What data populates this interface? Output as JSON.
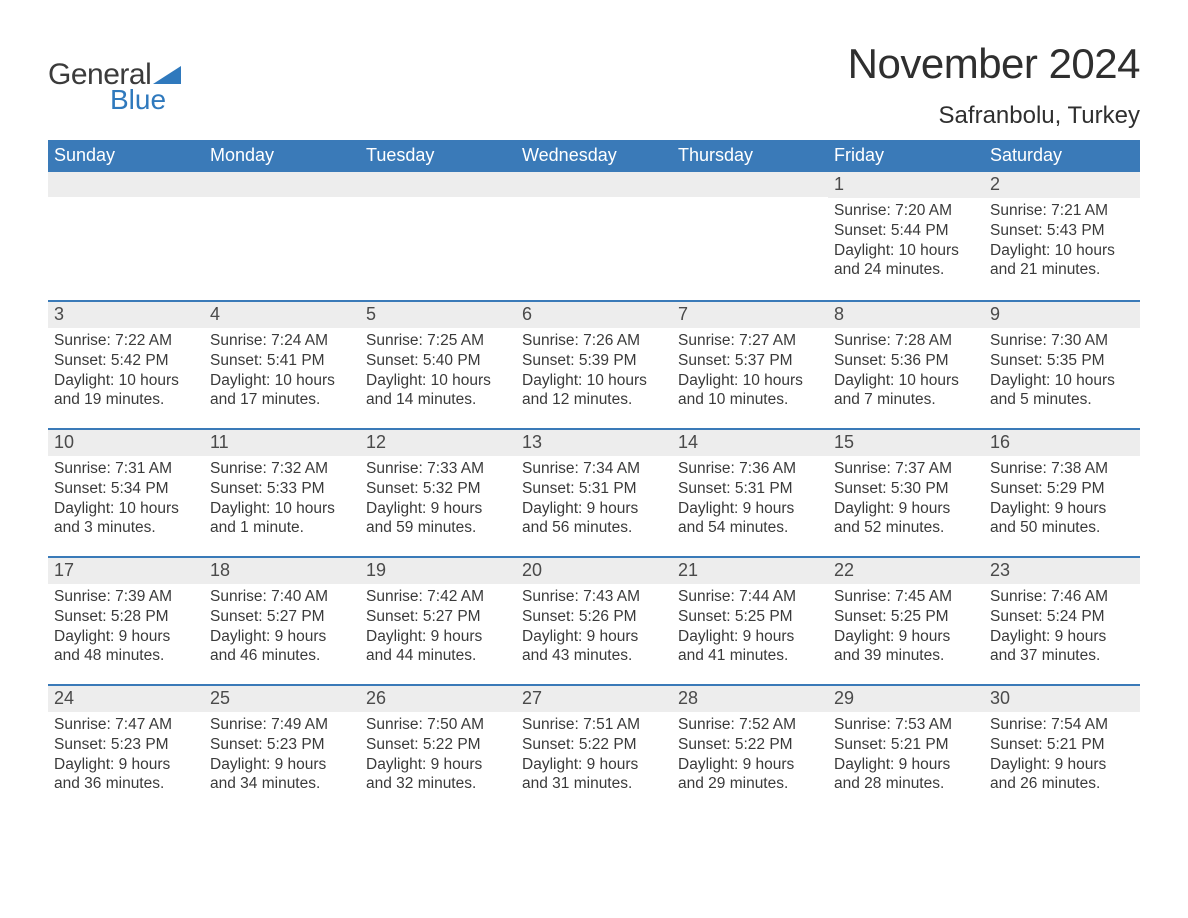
{
  "brand": {
    "text1": "General",
    "text2": "Blue",
    "triangle_color": "#2f79bd"
  },
  "title": "November 2024",
  "location": "Safranbolu, Turkey",
  "colors": {
    "header_bg": "#3a7ab8",
    "header_text": "#ffffff",
    "daynum_bg": "#ededed",
    "week_border": "#3a7ab8",
    "body_text": "#3a3a3a",
    "page_bg": "#ffffff"
  },
  "dow": [
    "Sunday",
    "Monday",
    "Tuesday",
    "Wednesday",
    "Thursday",
    "Friday",
    "Saturday"
  ],
  "weeks": [
    [
      {
        "n": "",
        "sunrise": "",
        "sunset": "",
        "daylight": ""
      },
      {
        "n": "",
        "sunrise": "",
        "sunset": "",
        "daylight": ""
      },
      {
        "n": "",
        "sunrise": "",
        "sunset": "",
        "daylight": ""
      },
      {
        "n": "",
        "sunrise": "",
        "sunset": "",
        "daylight": ""
      },
      {
        "n": "",
        "sunrise": "",
        "sunset": "",
        "daylight": ""
      },
      {
        "n": "1",
        "sunrise": "Sunrise: 7:20 AM",
        "sunset": "Sunset: 5:44 PM",
        "daylight": "Daylight: 10 hours and 24 minutes."
      },
      {
        "n": "2",
        "sunrise": "Sunrise: 7:21 AM",
        "sunset": "Sunset: 5:43 PM",
        "daylight": "Daylight: 10 hours and 21 minutes."
      }
    ],
    [
      {
        "n": "3",
        "sunrise": "Sunrise: 7:22 AM",
        "sunset": "Sunset: 5:42 PM",
        "daylight": "Daylight: 10 hours and 19 minutes."
      },
      {
        "n": "4",
        "sunrise": "Sunrise: 7:24 AM",
        "sunset": "Sunset: 5:41 PM",
        "daylight": "Daylight: 10 hours and 17 minutes."
      },
      {
        "n": "5",
        "sunrise": "Sunrise: 7:25 AM",
        "sunset": "Sunset: 5:40 PM",
        "daylight": "Daylight: 10 hours and 14 minutes."
      },
      {
        "n": "6",
        "sunrise": "Sunrise: 7:26 AM",
        "sunset": "Sunset: 5:39 PM",
        "daylight": "Daylight: 10 hours and 12 minutes."
      },
      {
        "n": "7",
        "sunrise": "Sunrise: 7:27 AM",
        "sunset": "Sunset: 5:37 PM",
        "daylight": "Daylight: 10 hours and 10 minutes."
      },
      {
        "n": "8",
        "sunrise": "Sunrise: 7:28 AM",
        "sunset": "Sunset: 5:36 PM",
        "daylight": "Daylight: 10 hours and 7 minutes."
      },
      {
        "n": "9",
        "sunrise": "Sunrise: 7:30 AM",
        "sunset": "Sunset: 5:35 PM",
        "daylight": "Daylight: 10 hours and 5 minutes."
      }
    ],
    [
      {
        "n": "10",
        "sunrise": "Sunrise: 7:31 AM",
        "sunset": "Sunset: 5:34 PM",
        "daylight": "Daylight: 10 hours and 3 minutes."
      },
      {
        "n": "11",
        "sunrise": "Sunrise: 7:32 AM",
        "sunset": "Sunset: 5:33 PM",
        "daylight": "Daylight: 10 hours and 1 minute."
      },
      {
        "n": "12",
        "sunrise": "Sunrise: 7:33 AM",
        "sunset": "Sunset: 5:32 PM",
        "daylight": "Daylight: 9 hours and 59 minutes."
      },
      {
        "n": "13",
        "sunrise": "Sunrise: 7:34 AM",
        "sunset": "Sunset: 5:31 PM",
        "daylight": "Daylight: 9 hours and 56 minutes."
      },
      {
        "n": "14",
        "sunrise": "Sunrise: 7:36 AM",
        "sunset": "Sunset: 5:31 PM",
        "daylight": "Daylight: 9 hours and 54 minutes."
      },
      {
        "n": "15",
        "sunrise": "Sunrise: 7:37 AM",
        "sunset": "Sunset: 5:30 PM",
        "daylight": "Daylight: 9 hours and 52 minutes."
      },
      {
        "n": "16",
        "sunrise": "Sunrise: 7:38 AM",
        "sunset": "Sunset: 5:29 PM",
        "daylight": "Daylight: 9 hours and 50 minutes."
      }
    ],
    [
      {
        "n": "17",
        "sunrise": "Sunrise: 7:39 AM",
        "sunset": "Sunset: 5:28 PM",
        "daylight": "Daylight: 9 hours and 48 minutes."
      },
      {
        "n": "18",
        "sunrise": "Sunrise: 7:40 AM",
        "sunset": "Sunset: 5:27 PM",
        "daylight": "Daylight: 9 hours and 46 minutes."
      },
      {
        "n": "19",
        "sunrise": "Sunrise: 7:42 AM",
        "sunset": "Sunset: 5:27 PM",
        "daylight": "Daylight: 9 hours and 44 minutes."
      },
      {
        "n": "20",
        "sunrise": "Sunrise: 7:43 AM",
        "sunset": "Sunset: 5:26 PM",
        "daylight": "Daylight: 9 hours and 43 minutes."
      },
      {
        "n": "21",
        "sunrise": "Sunrise: 7:44 AM",
        "sunset": "Sunset: 5:25 PM",
        "daylight": "Daylight: 9 hours and 41 minutes."
      },
      {
        "n": "22",
        "sunrise": "Sunrise: 7:45 AM",
        "sunset": "Sunset: 5:25 PM",
        "daylight": "Daylight: 9 hours and 39 minutes."
      },
      {
        "n": "23",
        "sunrise": "Sunrise: 7:46 AM",
        "sunset": "Sunset: 5:24 PM",
        "daylight": "Daylight: 9 hours and 37 minutes."
      }
    ],
    [
      {
        "n": "24",
        "sunrise": "Sunrise: 7:47 AM",
        "sunset": "Sunset: 5:23 PM",
        "daylight": "Daylight: 9 hours and 36 minutes."
      },
      {
        "n": "25",
        "sunrise": "Sunrise: 7:49 AM",
        "sunset": "Sunset: 5:23 PM",
        "daylight": "Daylight: 9 hours and 34 minutes."
      },
      {
        "n": "26",
        "sunrise": "Sunrise: 7:50 AM",
        "sunset": "Sunset: 5:22 PM",
        "daylight": "Daylight: 9 hours and 32 minutes."
      },
      {
        "n": "27",
        "sunrise": "Sunrise: 7:51 AM",
        "sunset": "Sunset: 5:22 PM",
        "daylight": "Daylight: 9 hours and 31 minutes."
      },
      {
        "n": "28",
        "sunrise": "Sunrise: 7:52 AM",
        "sunset": "Sunset: 5:22 PM",
        "daylight": "Daylight: 9 hours and 29 minutes."
      },
      {
        "n": "29",
        "sunrise": "Sunrise: 7:53 AM",
        "sunset": "Sunset: 5:21 PM",
        "daylight": "Daylight: 9 hours and 28 minutes."
      },
      {
        "n": "30",
        "sunrise": "Sunrise: 7:54 AM",
        "sunset": "Sunset: 5:21 PM",
        "daylight": "Daylight: 9 hours and 26 minutes."
      }
    ]
  ]
}
